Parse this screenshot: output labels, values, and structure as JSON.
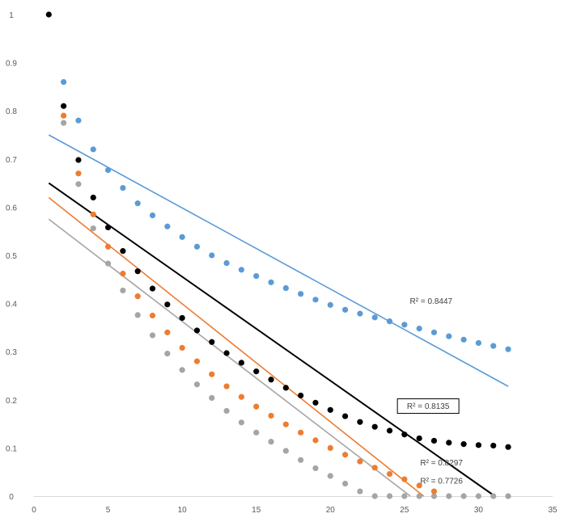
{
  "chart_data": {
    "type": "scatter",
    "title": "",
    "xlabel": "",
    "ylabel": "",
    "xlim": [
      0,
      35
    ],
    "ylim": [
      0,
      1
    ],
    "x_ticks": [
      0,
      5,
      10,
      15,
      20,
      25,
      30,
      35
    ],
    "y_ticks": [
      0,
      0.1,
      0.2,
      0.3,
      0.4,
      0.5,
      0.6,
      0.7,
      0.8,
      0.9,
      1
    ],
    "x_tick_labels": [
      "0",
      "5",
      "10",
      "15",
      "20",
      "25",
      "30",
      "35"
    ],
    "y_tick_labels": [
      "0",
      "0.1",
      "0.2",
      "0.3",
      "0.4",
      "0.5",
      "0.6",
      "0.7",
      "0.8",
      "0.9",
      "1"
    ],
    "grid": false,
    "legend": "none",
    "series": [
      {
        "name": "blue",
        "color": "#5B9BD5",
        "x": [
          2,
          3,
          4,
          5,
          6,
          7,
          8,
          9,
          10,
          11,
          12,
          13,
          14,
          15,
          16,
          17,
          18,
          19,
          20,
          21,
          22,
          23,
          24,
          25,
          26,
          27,
          28,
          29,
          30,
          31,
          32
        ],
        "y": [
          0.86,
          0.78,
          0.72,
          0.677,
          0.64,
          0.608,
          0.583,
          0.56,
          0.538,
          0.518,
          0.5,
          0.484,
          0.47,
          0.457,
          0.444,
          0.432,
          0.42,
          0.408,
          0.397,
          0.387,
          0.379,
          0.371,
          0.363,
          0.356,
          0.348,
          0.34,
          0.332,
          0.325,
          0.318,
          0.312,
          0.305
        ],
        "trendline": {
          "x": [
            1,
            32
          ],
          "y": [
            0.75,
            0.228
          ]
        },
        "r2_label": "R² = 0.8447",
        "r2_x": 26.8,
        "r2_y": 0.405,
        "r2_boxed": false
      },
      {
        "name": "black",
        "color": "#000000",
        "x": [
          1,
          2,
          3,
          4,
          5,
          6,
          7,
          8,
          9,
          10,
          11,
          12,
          13,
          14,
          15,
          16,
          17,
          18,
          19,
          20,
          21,
          22,
          23,
          24,
          25,
          26,
          27,
          28,
          29,
          30,
          31,
          32
        ],
        "y": [
          1.0,
          0.81,
          0.698,
          0.62,
          0.558,
          0.509,
          0.467,
          0.431,
          0.398,
          0.37,
          0.344,
          0.32,
          0.297,
          0.277,
          0.259,
          0.242,
          0.225,
          0.209,
          0.194,
          0.179,
          0.166,
          0.154,
          0.144,
          0.136,
          0.128,
          0.12,
          0.115,
          0.111,
          0.108,
          0.106,
          0.105,
          0.102
        ],
        "trendline": {
          "x": [
            1,
            31.1
          ],
          "y": [
            0.65,
            0
          ]
        },
        "r2_label": "R² = 0.8135",
        "r2_x": 26.6,
        "r2_y": 0.187,
        "r2_boxed": true
      },
      {
        "name": "orange",
        "color": "#ED7D31",
        "x": [
          2,
          3,
          4,
          5,
          6,
          7,
          8,
          9,
          10,
          11,
          12,
          13,
          14,
          15,
          16,
          17,
          18,
          19,
          20,
          21,
          22,
          23,
          24,
          25,
          26,
          27
        ],
        "y": [
          0.79,
          0.67,
          0.585,
          0.518,
          0.462,
          0.415,
          0.375,
          0.34,
          0.308,
          0.28,
          0.253,
          0.228,
          0.206,
          0.186,
          0.167,
          0.149,
          0.132,
          0.116,
          0.1,
          0.086,
          0.072,
          0.059,
          0.046,
          0.035,
          0.022,
          0.01
        ],
        "trendline": {
          "x": [
            1,
            26.3
          ],
          "y": [
            0.62,
            0
          ]
        },
        "r2_label": "R² = 0.8297",
        "r2_x": 27.5,
        "r2_y": 0.07,
        "r2_boxed": false
      },
      {
        "name": "gray",
        "color": "#A5A5A5",
        "x": [
          2,
          3,
          4,
          5,
          6,
          7,
          8,
          9,
          10,
          11,
          12,
          13,
          14,
          15,
          16,
          17,
          18,
          19,
          20,
          21,
          22,
          23,
          24,
          25,
          26,
          27,
          28,
          29,
          30,
          31,
          32
        ],
        "y": [
          0.775,
          0.648,
          0.556,
          0.483,
          0.427,
          0.376,
          0.334,
          0.296,
          0.262,
          0.232,
          0.204,
          0.177,
          0.153,
          0.132,
          0.113,
          0.094,
          0.075,
          0.058,
          0.042,
          0.026,
          0.01,
          0,
          0,
          0,
          0,
          0,
          0,
          0,
          0,
          0,
          0
        ],
        "trendline": {
          "x": [
            1,
            25.4
          ],
          "y": [
            0.575,
            0
          ]
        },
        "r2_label": "R² = 0.7726",
        "r2_x": 27.5,
        "r2_y": 0.032,
        "r2_boxed": false
      }
    ]
  }
}
